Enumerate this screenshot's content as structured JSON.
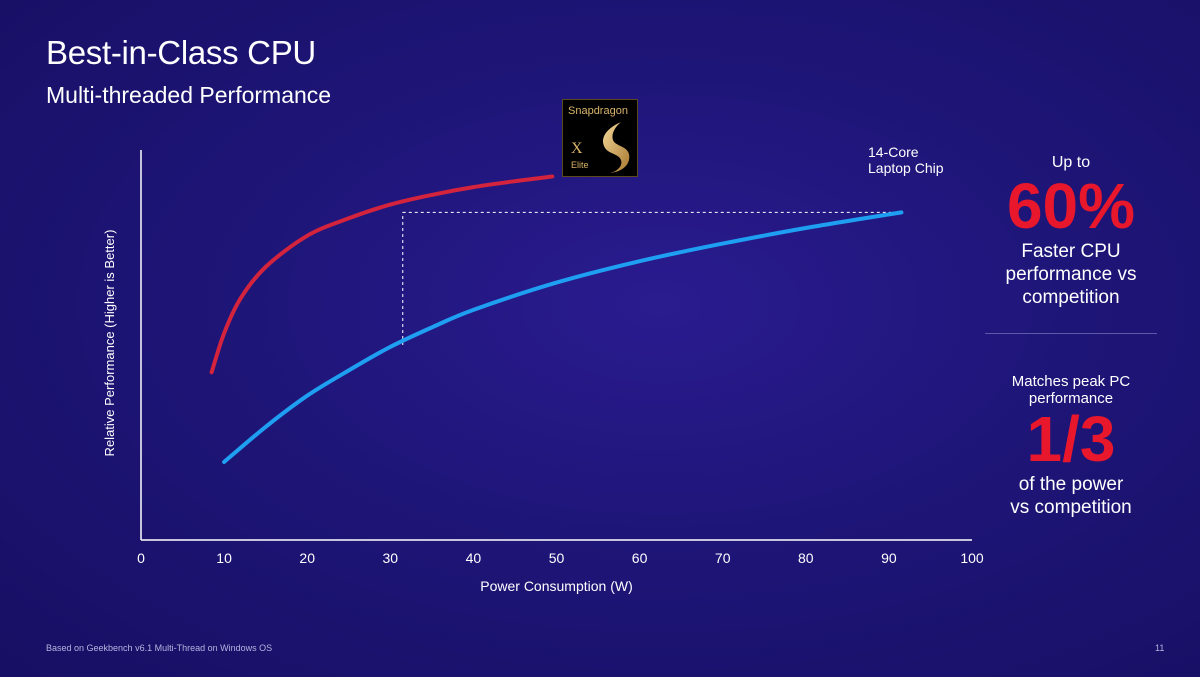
{
  "header": {
    "title": "Best-in-Class CPU",
    "subtitle": "Multi-threaded Performance"
  },
  "badge": {
    "brand": "Snapdragon",
    "model": "X",
    "tier": "Elite",
    "icon": "snapdragon-flame-icon"
  },
  "competitor_label": [
    "14-Core",
    "Laptop Chip"
  ],
  "stat1": {
    "prefix": "Up to",
    "value": "60%",
    "desc": [
      "Faster CPU",
      "performance vs",
      "competition"
    ]
  },
  "stat2": {
    "prefix": [
      "Matches peak PC",
      "performance"
    ],
    "value": "1/3",
    "desc": [
      "of the power",
      "vs competition"
    ]
  },
  "footer": {
    "note": "Based on Geekbench v6.1 Multi-Thread on Windows OS",
    "page": "11"
  },
  "colors": {
    "snapdragon": "#d3233d",
    "competitor": "#1e9ff2",
    "accent": "#e8172c"
  },
  "chart_data": {
    "type": "line",
    "xlabel": "Power Consumption (W)",
    "ylabel": "Relative Performance  (Higher is Better)",
    "xlim": [
      0,
      100
    ],
    "xticks": [
      "0",
      "10",
      "20",
      "30",
      "40",
      "50",
      "60",
      "70",
      "80",
      "90",
      "100"
    ],
    "ylim": [
      0,
      100
    ],
    "series": [
      {
        "color": "#d3233d",
        "points": [
          [
            8.5,
            43
          ],
          [
            10,
            53
          ],
          [
            12,
            62
          ],
          [
            15,
            70
          ],
          [
            20,
            78
          ],
          [
            25,
            82.5
          ],
          [
            30,
            86
          ],
          [
            35,
            88.5
          ],
          [
            40,
            90.5
          ],
          [
            45,
            92
          ],
          [
            49.5,
            93.2
          ]
        ]
      },
      {
        "name": "14-Core Laptop Chip",
        "color": "#1e9ff2",
        "points": [
          [
            10,
            20
          ],
          [
            15,
            29
          ],
          [
            20,
            37
          ],
          [
            25,
            43.5
          ],
          [
            30,
            49.5
          ],
          [
            35,
            54.5
          ],
          [
            40,
            59
          ],
          [
            50,
            66
          ],
          [
            60,
            71.5
          ],
          [
            70,
            76
          ],
          [
            80,
            80
          ],
          [
            91.5,
            84
          ]
        ]
      }
    ],
    "annotations": [
      {
        "type": "hline",
        "y": 84,
        "from_x": 31.5,
        "to_x": 91.5,
        "style": "dashed"
      },
      {
        "type": "vline",
        "x": 31.5,
        "from_y": 50,
        "to_y": 84,
        "style": "dashed"
      }
    ]
  }
}
